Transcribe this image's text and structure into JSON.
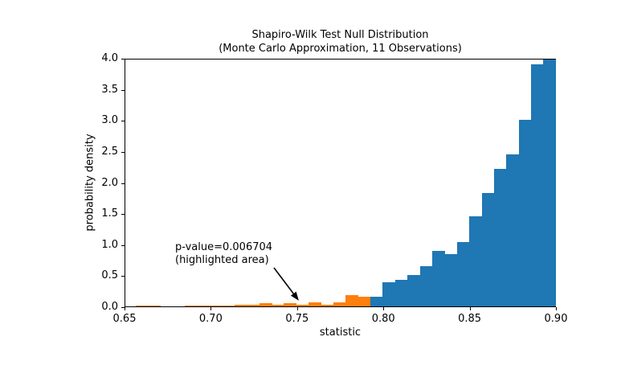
{
  "figure": {
    "title_line1": "Shapiro-Wilk Test Null Distribution",
    "title_line2": "(Monte Carlo Approximation, 11 Observations)"
  },
  "chart_data": {
    "type": "bar",
    "subtype": "histogram",
    "title": "Shapiro-Wilk Test Null Distribution (Monte Carlo Approximation, 11 Observations)",
    "xlabel": "statistic",
    "ylabel": "probability density",
    "xlim": [
      0.65,
      0.9
    ],
    "ylim": [
      0.0,
      4.0
    ],
    "grid": false,
    "x_ticks": [
      {
        "v": 0.65,
        "label": "0.65"
      },
      {
        "v": 0.7,
        "label": "0.70"
      },
      {
        "v": 0.75,
        "label": "0.75"
      },
      {
        "v": 0.8,
        "label": "0.80"
      },
      {
        "v": 0.85,
        "label": "0.85"
      },
      {
        "v": 0.9,
        "label": "0.90"
      }
    ],
    "y_ticks": [
      {
        "v": 0.0,
        "label": "0.0"
      },
      {
        "v": 0.5,
        "label": "0.5"
      },
      {
        "v": 1.0,
        "label": "1.0"
      },
      {
        "v": 1.5,
        "label": "1.5"
      },
      {
        "v": 2.0,
        "label": "2.0"
      },
      {
        "v": 2.5,
        "label": "2.5"
      },
      {
        "v": 3.0,
        "label": "3.0"
      },
      {
        "v": 3.5,
        "label": "3.5"
      },
      {
        "v": 4.0,
        "label": "4.0"
      }
    ],
    "colors": {
      "null_bars": "#1f77b4",
      "highlight_bars": "#ff7f0e",
      "text": "#000000"
    },
    "bin_edges": [
      0.656,
      0.66316,
      0.67032,
      0.67748,
      0.68464,
      0.6918,
      0.69896,
      0.70612,
      0.71328,
      0.72044,
      0.7276,
      0.73476,
      0.74192,
      0.74908,
      0.75624,
      0.7634,
      0.77056,
      0.77772,
      0.78488,
      0.79204,
      0.7992,
      0.80636,
      0.81352,
      0.82068,
      0.82784,
      0.835,
      0.84216,
      0.84932,
      0.85648,
      0.86364,
      0.8708,
      0.87796,
      0.88512,
      0.89228,
      0.89944
    ],
    "densities": [
      0.014,
      0.014,
      0,
      0,
      0.014,
      0.014,
      0.014,
      0.014,
      0.028,
      0.028,
      0.057,
      0.028,
      0.057,
      0.028,
      0.065,
      0.028,
      0.065,
      0.18,
      0.15,
      0.15,
      0.39,
      0.43,
      0.5,
      0.65,
      0.89,
      0.84,
      1.04,
      1.45,
      1.82,
      2.22,
      2.45,
      3.0,
      3.9,
      4.0
    ],
    "highlight_bin_count": 19,
    "highlight_region": {
      "from": 0.656,
      "to": 0.792
    },
    "annotation": {
      "line1": "p-value=0.006704",
      "line2": "(highlighted area)",
      "arrow_from_xy": [
        0.7366,
        0.634
      ],
      "arrow_to_xy": [
        0.751,
        0.105
      ]
    }
  }
}
